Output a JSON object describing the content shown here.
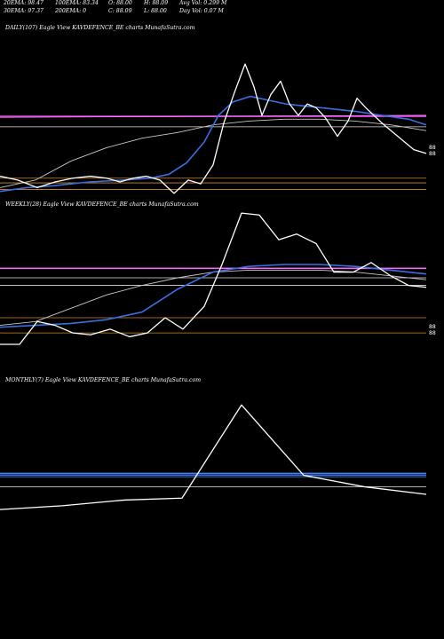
{
  "header": {
    "row1": [
      "20EMA: 98.47",
      "100EMA: 83.34",
      "O: 88.00",
      "H: 88.09",
      "Avg Vol: 0.299 M"
    ],
    "row2": [
      "30EMA: 97.37",
      "200EMA: 0",
      "C: 88.09",
      "L: 88.00",
      "Day Vol: 0.07 M"
    ]
  },
  "colors": {
    "background": "#000000",
    "price": "#ffffff",
    "ema_blue": "#3a6fe0",
    "ema_gray": "#c8c8c8",
    "magenta_level": "#e040e0",
    "orange_level": "#d88a28",
    "white_level": "#e0e0e0"
  },
  "chart_data": [
    {
      "type": "line",
      "title": "DAILY(107) Eagle  View  KAVDEFENCE_BE charts MunafaSutra.com",
      "y_range": [
        62,
        146
      ],
      "right_labels": [
        "88",
        "88"
      ],
      "series": [
        {
          "color": "#ffffff",
          "values": [
            [
              0,
              72
            ],
            [
              20,
              70
            ],
            [
              42,
              66
            ],
            [
              62,
              69
            ],
            [
              82,
              71
            ],
            [
              102,
              72
            ],
            [
              120,
              71
            ],
            [
              135,
              69
            ],
            [
              150,
              71
            ],
            [
              165,
              72
            ],
            [
              180,
              70
            ],
            [
              196,
              63
            ],
            [
              212,
              70
            ],
            [
              226,
              68
            ],
            [
              240,
              78
            ],
            [
              252,
              100
            ],
            [
              264,
              116
            ],
            [
              276,
              131
            ],
            [
              286,
              119
            ],
            [
              295,
              104
            ],
            [
              305,
              115
            ],
            [
              316,
              122
            ],
            [
              326,
              110
            ],
            [
              336,
              104
            ],
            [
              346,
              110
            ],
            [
              356,
              108
            ],
            [
              366,
              103
            ],
            [
              380,
              93
            ],
            [
              392,
              101
            ],
            [
              402,
              113
            ],
            [
              412,
              108
            ],
            [
              430,
              100
            ],
            [
              448,
              93
            ],
            [
              466,
              86
            ],
            [
              480,
              84
            ]
          ]
        },
        {
          "color": "#3a6fe0",
          "values": [
            [
              0,
              64
            ],
            [
              30,
              66
            ],
            [
              60,
              67
            ],
            [
              100,
              69
            ],
            [
              140,
              70
            ],
            [
              170,
              71
            ],
            [
              190,
              73
            ],
            [
              210,
              79
            ],
            [
              230,
              90
            ],
            [
              246,
              104
            ],
            [
              262,
              111
            ],
            [
              282,
              114
            ],
            [
              302,
              112
            ],
            [
              322,
              110
            ],
            [
              342,
              109
            ],
            [
              362,
              108
            ],
            [
              382,
              107
            ],
            [
              402,
              106
            ],
            [
              430,
              104
            ],
            [
              460,
              102
            ],
            [
              480,
              99
            ]
          ]
        },
        {
          "color": "#c8c8c8",
          "values": [
            [
              0,
              66
            ],
            [
              40,
              70
            ],
            [
              80,
              80
            ],
            [
              120,
              87
            ],
            [
              160,
              92
            ],
            [
              200,
              95
            ],
            [
              240,
              99
            ],
            [
              280,
              101
            ],
            [
              320,
              102
            ],
            [
              360,
              102
            ],
            [
              400,
              101
            ],
            [
              440,
              99
            ],
            [
              480,
              96
            ]
          ]
        },
        {
          "color": "#ff80ff",
          "values": [
            [
              0,
              103
            ],
            [
              480,
              104
            ]
          ]
        }
      ],
      "levels": [
        {
          "y": 103.5,
          "color": "#e040e0"
        },
        {
          "y": 98,
          "color": "#e0e0e0"
        },
        {
          "y": 71,
          "color": "#d88a28"
        },
        {
          "y": 68.5,
          "color": "#d88a28"
        },
        {
          "y": 65,
          "color": "#d88a28"
        }
      ]
    },
    {
      "type": "line",
      "title": "WEEKLY(28) Eagle  View  KAVDEFENCE_BE charts MunafaSutra.com",
      "y_range": [
        62,
        146
      ],
      "right_labels": [
        "88",
        "88"
      ],
      "series": [
        {
          "color": "#ffffff",
          "values": [
            [
              0,
              76
            ],
            [
              22,
              76
            ],
            [
              42,
              88
            ],
            [
              62,
              86
            ],
            [
              82,
              82
            ],
            [
              102,
              81
            ],
            [
              124,
              84
            ],
            [
              146,
              80
            ],
            [
              166,
              82
            ],
            [
              186,
              90
            ],
            [
              206,
              84
            ],
            [
              230,
              96
            ],
            [
              250,
              118
            ],
            [
              272,
              145
            ],
            [
              292,
              144
            ],
            [
              314,
              131
            ],
            [
              334,
              134
            ],
            [
              356,
              129
            ],
            [
              376,
              114
            ],
            [
              398,
              114
            ],
            [
              418,
              119
            ],
            [
              440,
              112
            ],
            [
              460,
              107
            ],
            [
              480,
              106
            ]
          ]
        },
        {
          "color": "#3a6fe0",
          "values": [
            [
              0,
              85
            ],
            [
              40,
              86
            ],
            [
              80,
              87
            ],
            [
              120,
              89
            ],
            [
              160,
              93
            ],
            [
              200,
              105
            ],
            [
              240,
              114
            ],
            [
              280,
              117
            ],
            [
              320,
              118
            ],
            [
              360,
              118
            ],
            [
              400,
              117
            ],
            [
              440,
              115
            ],
            [
              480,
              113
            ]
          ]
        },
        {
          "color": "#c8c8c8",
          "values": [
            [
              0,
              86
            ],
            [
              40,
              88
            ],
            [
              80,
              95
            ],
            [
              120,
              102
            ],
            [
              160,
              107
            ],
            [
              200,
              111
            ],
            [
              240,
              114
            ],
            [
              280,
              115
            ],
            [
              320,
              115
            ],
            [
              360,
              115
            ],
            [
              400,
              114
            ],
            [
              440,
              112
            ],
            [
              480,
              110
            ]
          ]
        },
        {
          "color": "#ff80ff",
          "values": [
            [
              0,
              116
            ],
            [
              480,
              116
            ]
          ]
        }
      ],
      "levels": [
        {
          "y": 116,
          "color": "#e040e0"
        },
        {
          "y": 111,
          "color": "#e0e0e0"
        },
        {
          "y": 107,
          "color": "#e0e0e0"
        },
        {
          "y": 90,
          "color": "#d88a28"
        },
        {
          "y": 82,
          "color": "#d88a28"
        }
      ]
    },
    {
      "type": "line",
      "title": "MONTHLY(7) Eagle  View  KAVDEFENCE_BE charts MunafaSutra.com",
      "y_range": [
        62,
        146
      ],
      "right_labels": [],
      "series": [
        {
          "color": "#ffffff",
          "values": [
            [
              0,
              82
            ],
            [
              70,
              84
            ],
            [
              140,
              87
            ],
            [
              205,
              88
            ],
            [
              272,
              137
            ],
            [
              342,
              100
            ],
            [
              410,
              94
            ],
            [
              480,
              90
            ]
          ]
        },
        {
          "color": "#3a6fe0",
          "values": [
            [
              0,
              100
            ],
            [
              480,
              100
            ]
          ]
        }
      ],
      "levels": [
        {
          "y": 101,
          "color": "#4a80f0"
        },
        {
          "y": 99,
          "color": "#3a6fe0"
        },
        {
          "y": 94,
          "color": "#c8c8c8"
        }
      ]
    }
  ]
}
